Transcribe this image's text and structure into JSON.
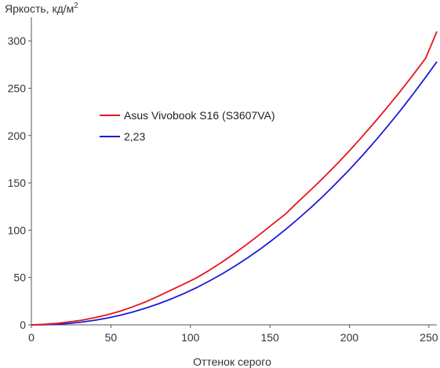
{
  "chart_data": {
    "type": "line",
    "title": "",
    "xlabel": "Оттенок серого",
    "ylabel": "Яркость, кд/м",
    "ylabel_sup": "2",
    "xlim": [
      0,
      255
    ],
    "ylim": [
      0,
      320
    ],
    "x_ticks": [
      0,
      50,
      100,
      150,
      200,
      250
    ],
    "y_ticks": [
      0,
      50,
      100,
      150,
      200,
      250,
      300
    ],
    "x_tick_labels": [
      "0",
      "50",
      "100",
      "150",
      "200",
      "250"
    ],
    "y_tick_labels": [
      "0",
      "50",
      "100",
      "150",
      "200",
      "250",
      "300"
    ],
    "grid": false,
    "legend_position": "center-left",
    "series": [
      {
        "name": "Asus Vivobook S16 (S3607VA)",
        "color": "#e8141e",
        "x": [
          0,
          8,
          16,
          24,
          32,
          40,
          48,
          56,
          64,
          72,
          80,
          88,
          96,
          104,
          112,
          120,
          128,
          136,
          144,
          152,
          160,
          168,
          176,
          184,
          192,
          200,
          208,
          216,
          224,
          232,
          240,
          248,
          255
        ],
        "y": [
          0,
          0.6,
          1.5,
          3.2,
          5.0,
          7.6,
          10.8,
          14.5,
          19.2,
          24.4,
          30.4,
          36.8,
          43.2,
          49.8,
          57.8,
          66.4,
          75.8,
          85.6,
          96.0,
          106.8,
          117.4,
          130.4,
          143.0,
          156.0,
          169.6,
          184.0,
          198.8,
          214.2,
          230.2,
          246.8,
          264.0,
          281.8,
          310.0
        ]
      },
      {
        "name": "2,23",
        "color": "#1a1adc",
        "gamma": 2.23,
        "x": [
          0,
          8,
          16,
          24,
          32,
          40,
          48,
          56,
          64,
          72,
          80,
          88,
          96,
          104,
          112,
          120,
          128,
          136,
          144,
          152,
          160,
          168,
          176,
          184,
          192,
          200,
          208,
          216,
          224,
          232,
          240,
          248,
          255
        ],
        "y": [
          0,
          0.14,
          0.68,
          1.6,
          3.0,
          4.9,
          7.3,
          10.2,
          13.7,
          17.7,
          22.3,
          27.4,
          33.1,
          39.4,
          46.4,
          53.9,
          62.1,
          70.8,
          80.2,
          90.3,
          101.0,
          112.3,
          124.2,
          136.8,
          150.1,
          164.0,
          178.6,
          193.8,
          209.8,
          226.4,
          243.7,
          261.7,
          278.0
        ]
      }
    ]
  }
}
